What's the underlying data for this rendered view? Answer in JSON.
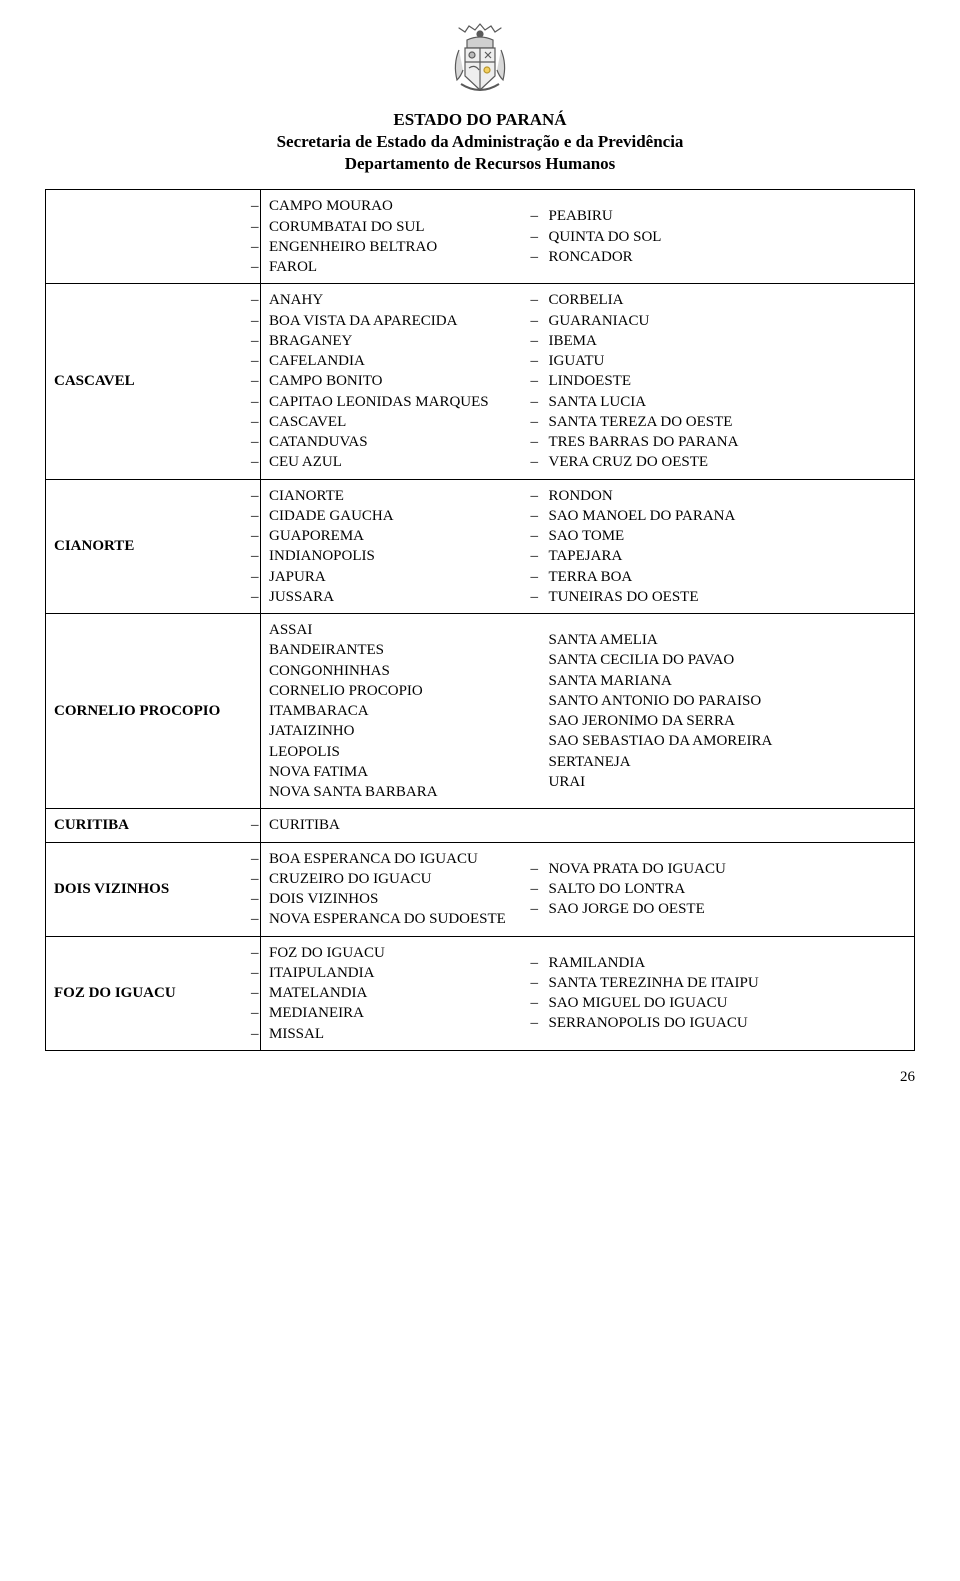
{
  "header": {
    "line1": "ESTADO DO PARANÁ",
    "line2": "Secretaria de Estado da Administração e da Previdência",
    "line3": "Departamento de Recursos Humanos"
  },
  "page_number": "26",
  "rows": [
    {
      "region": "",
      "style": "dash",
      "left": [
        "CAMPO MOURAO",
        "CORUMBATAI DO SUL",
        "ENGENHEIRO BELTRAO",
        "FAROL"
      ],
      "right": [
        "PEABIRU",
        "QUINTA DO SOL",
        "RONCADOR"
      ]
    },
    {
      "region": "CASCAVEL",
      "style": "dash",
      "left": [
        "ANAHY",
        "BOA VISTA DA APARECIDA",
        "BRAGANEY",
        "CAFELANDIA",
        "CAMPO BONITO",
        "CAPITAO LEONIDAS MARQUES",
        "CASCAVEL",
        "CATANDUVAS",
        "CEU AZUL"
      ],
      "right": [
        "CORBELIA",
        "GUARANIACU",
        "IBEMA",
        "IGUATU",
        "LINDOESTE",
        "SANTA LUCIA",
        "SANTA TEREZA DO OESTE",
        "TRES BARRAS DO PARANA",
        "VERA CRUZ DO OESTE"
      ]
    },
    {
      "region": "CIANORTE",
      "style": "dash",
      "left": [
        "CIANORTE",
        "CIDADE GAUCHA",
        "GUAPOREMA",
        "INDIANOPOLIS",
        "JAPURA",
        "JUSSARA"
      ],
      "right": [
        "RONDON",
        "SAO MANOEL DO PARANA",
        "SAO TOME",
        "TAPEJARA",
        "TERRA BOA",
        "TUNEIRAS DO OESTE"
      ]
    },
    {
      "region": "CORNELIO PROCOPIO",
      "style": "plain",
      "left": [
        "ASSAI",
        "BANDEIRANTES",
        "CONGONHINHAS",
        "CORNELIO PROCOPIO",
        "ITAMBARACA",
        "JATAIZINHO",
        "LEOPOLIS",
        "NOVA FATIMA",
        "NOVA SANTA BARBARA"
      ],
      "right": [
        "SANTA AMELIA",
        "SANTA CECILIA DO PAVAO",
        "SANTA MARIANA",
        "SANTO ANTONIO DO PARAISO",
        "SAO JERONIMO DA SERRA",
        "SAO SEBASTIAO DA AMOREIRA",
        "SERTANEJA",
        "URAI"
      ]
    },
    {
      "region": "CURITIBA",
      "style": "dash",
      "left": [
        "CURITIBA"
      ],
      "right": []
    },
    {
      "region": "DOIS VIZINHOS",
      "style": "dash",
      "left": [
        "BOA ESPERANCA DO IGUACU",
        "CRUZEIRO DO IGUACU",
        "DOIS VIZINHOS",
        "NOVA ESPERANCA DO SUDOESTE"
      ],
      "right": [
        "NOVA PRATA DO IGUACU",
        "SALTO DO LONTRA",
        "SAO JORGE DO OESTE"
      ]
    },
    {
      "region": "FOZ DO IGUACU",
      "style": "dash",
      "left": [
        "FOZ DO IGUACU",
        "ITAIPULANDIA",
        "MATELANDIA",
        "MEDIANEIRA",
        "MISSAL"
      ],
      "right": [
        "RAMILANDIA",
        "SANTA TEREZINHA DE ITAIPU",
        "SAO MIGUEL DO IGUACU",
        "SERRANOPOLIS DO IGUACU"
      ]
    }
  ]
}
